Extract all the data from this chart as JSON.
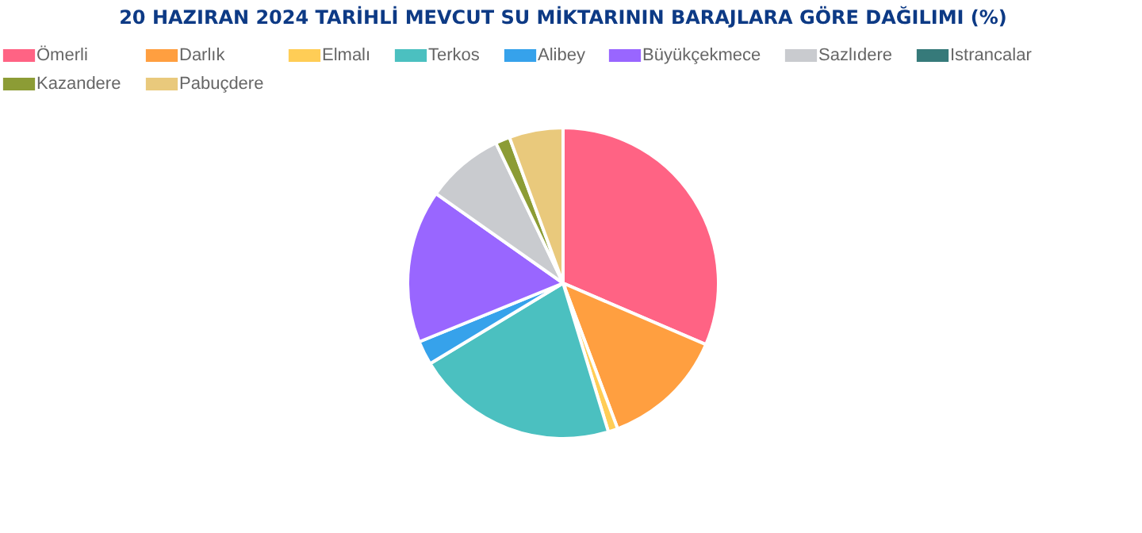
{
  "chart_data": {
    "type": "pie",
    "title": "20 HAZIRAN 2024 TARİHLİ MEVCUT SU MİKTARININ BARAJLARA GÖRE DAĞILIMI (%)",
    "categories": [
      "Ömerli",
      "Darlık",
      "Elmalı",
      "Terkos",
      "Alibey",
      "Büyükçekmece",
      "Sazlıdere",
      "Istrancalar",
      "Kazandere",
      "Pabuçdere"
    ],
    "values": [
      31.4,
      12.8,
      1.0,
      21.0,
      2.5,
      15.9,
      8.1,
      null,
      1.5,
      5.6
    ],
    "colors": [
      "#ff6384",
      "#ff9f40",
      "#ffcd56",
      "#4bc0c0",
      "#36a2eb",
      "#9966ff",
      "#c9cbcf",
      "#367a7a",
      "#8c9c35",
      "#e9c97c"
    ],
    "legend": "top"
  }
}
